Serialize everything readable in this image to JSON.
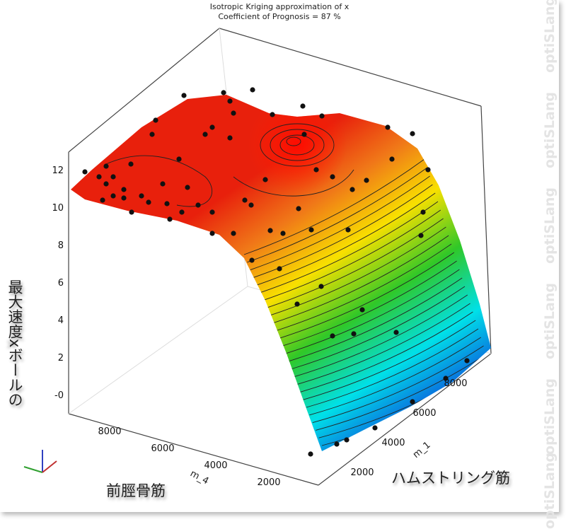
{
  "chart_data": {
    "type": "surface",
    "title": "Isotropic Kriging  approximation of x",
    "subtitle": "Coefficient of Prognosis = 87 %",
    "z_axis": {
      "label": "ボールの\n最大速度x",
      "label_line1": "ボールの",
      "label_line2": "最大速度x",
      "ticks": [
        "12",
        "10",
        "8",
        "6",
        "4",
        "2",
        "-0"
      ]
    },
    "x_axis": {
      "name": "m_4",
      "label": "前脛骨筋",
      "ticks": [
        "8000",
        "6000",
        "4000",
        "2000"
      ]
    },
    "y_axis": {
      "name": "m_1",
      "label": "ハムストリング筋",
      "ticks": [
        "2000",
        "4000",
        "6000",
        "8000"
      ]
    },
    "zlim": [
      0,
      12
    ],
    "colormap": [
      "#e01010",
      "#f07010",
      "#f0d000",
      "#30c020",
      "#00e0e0",
      "#1030e0"
    ],
    "description_values": {
      "max_region": "red peak near m_4 high, m_1 mid",
      "min_region": "blue at m_4 low, m_1 high"
    }
  },
  "watermark": "optiSLang"
}
